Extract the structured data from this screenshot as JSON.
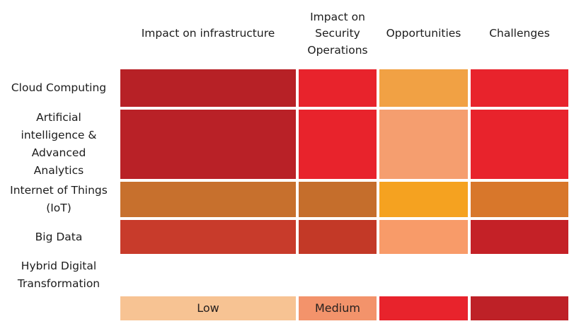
{
  "chart_data": {
    "type": "heatmap",
    "title": "",
    "columns": [
      "Impact on infrastructure",
      "Impact on Security Operations",
      "Opportunities",
      "Challenges"
    ],
    "rows": [
      {
        "label": "Cloud Computing",
        "cells": [
          "#B72126",
          "#E8232C",
          "#F1A144",
          "#E8232C"
        ]
      },
      {
        "label": "Artificial intelligence & Advanced Analytics",
        "cells": [
          "#B92127",
          "#E8232C",
          "#F59E6F",
          "#E8232C"
        ]
      },
      {
        "label": "Internet of Things (IoT)",
        "cells": [
          "#C7702D",
          "#C56E2C",
          "#F5A220",
          "#D8772B"
        ]
      },
      {
        "label": "Big Data",
        "cells": [
          "#C83B2B",
          "#C33927",
          "#F89B69",
          "#C42127"
        ]
      },
      {
        "label": "Hybrid Digital Transformation",
        "cells": [
          null,
          null,
          null,
          null
        ]
      }
    ],
    "legend": [
      {
        "label": "Low",
        "color": "#F7C393"
      },
      {
        "label": "Medium",
        "color": "#F3936B"
      },
      {
        "label": "",
        "color": "#E8232C"
      },
      {
        "label": "",
        "color": "#BE2127"
      }
    ],
    "layout": {
      "grid": "on-gaps-white",
      "legend_position": "bottom",
      "text_color": "#1c1c1c"
    }
  }
}
